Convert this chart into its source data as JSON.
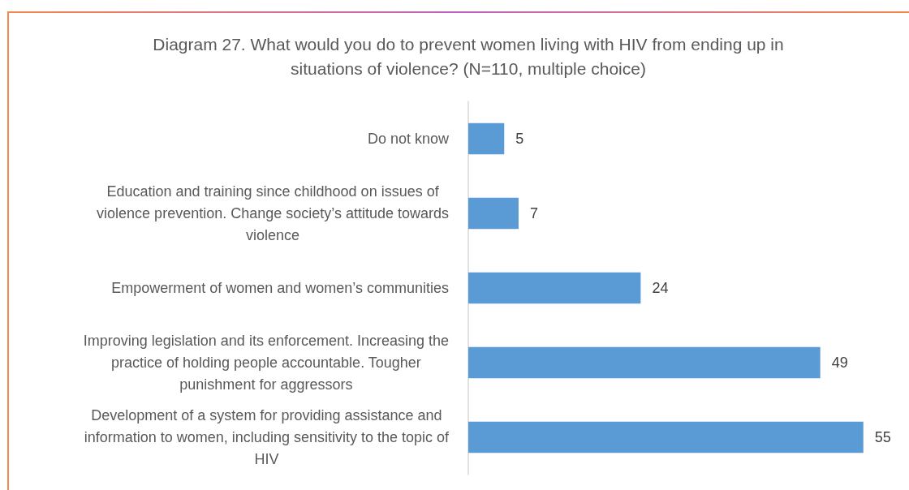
{
  "chart_data": {
    "type": "bar",
    "orientation": "horizontal",
    "title": "Diagram 27. What would you do to prevent women living with HIV from ending up in situations of violence? (N=110, multiple choice)",
    "categories": [
      "Do not know",
      "Education and training since childhood on issues of violence prevention. Change society’s attitude towards violence",
      "Empowerment of women and women’s communities",
      "Improving legislation and its enforcement. Increasing the practice of holding people accountable. Tougher punishment for aggressors",
      "Development of a system for providing assistance and information to women, including sensitivity to the topic of HIV"
    ],
    "values": [
      5,
      7,
      24,
      49,
      55
    ],
    "color": "#5b9bd5",
    "data_labels": true,
    "tick_labels": "y"
  }
}
